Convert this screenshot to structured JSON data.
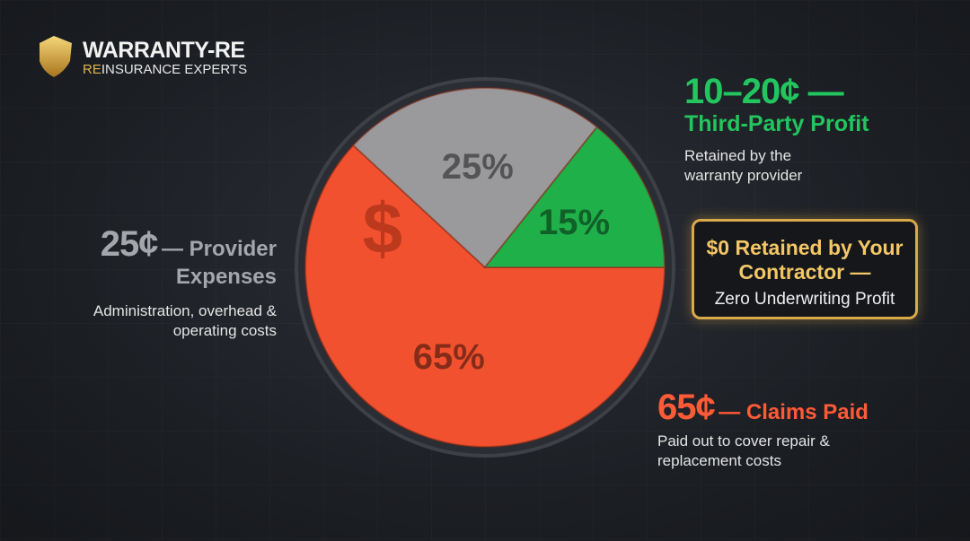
{
  "logo": {
    "name": "WARRANTY-RE",
    "tagline_accent": "RE",
    "tagline": "INSURANCE EXPERTS"
  },
  "chart_data": {
    "type": "pie",
    "symbol": "$",
    "values": [
      65,
      25,
      15
    ],
    "value_labels": [
      "65%",
      "25%",
      "15%"
    ],
    "colors": [
      "#f2512f",
      "#9a9a9c",
      "#1fb04a"
    ]
  },
  "annotations": [
    {
      "amount": "10–20¢ —",
      "title": "Third-Party Profit",
      "description": "Retained by the warranty provider"
    },
    {
      "amount": "25¢",
      "title": "— Provider Expenses",
      "description": "Administration, overhead & operating costs"
    },
    {
      "amount": "65¢",
      "title": "— Claims Paid",
      "description": "Paid out to cover repair & replacement costs"
    }
  ],
  "callout": {
    "title": "$0 Retained by Your Contractor —",
    "subtitle": "Zero Underwriting Profit"
  }
}
